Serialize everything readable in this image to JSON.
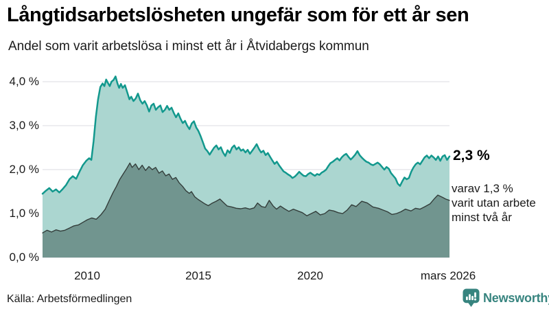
{
  "header": {
    "title": "Långtidsarbetslösheten ungefär som för ett år sen",
    "subtitle": "Andel som varit arbetslösa i minst ett år i Åtvidabergs kommun"
  },
  "annotations": {
    "end_value": "2,3 %",
    "secondary": [
      "varav 1,3 %",
      "varit utan arbete",
      "minst två år"
    ]
  },
  "footer": {
    "source": "Källa: Arbetsförmedlingen",
    "brand": "Newsworthy"
  },
  "colors": {
    "accent_line": "#12988d",
    "fill_light": "#abd6d0",
    "fill_dark": "#71958f",
    "line_dark": "#333d3a",
    "grid": "#e2e2e7",
    "text": "#1a1a1a",
    "brand": "#37847f"
  },
  "chart_data": {
    "type": "area",
    "title": "Långtidsarbetslösheten ungefär som för ett år sen",
    "subtitle": "Andel som varit arbetslösa i minst ett år i Åtvidabergs kommun",
    "source": "Arbetsförmedlingen",
    "grid": true,
    "x_range": [
      2008.0,
      2026.17
    ],
    "ylim": [
      0,
      4.3
    ],
    "x_ticks": [
      "2010",
      "2015",
      "2020",
      "mars 2026"
    ],
    "x_tick_years": [
      2010,
      2015,
      2020,
      2026.17
    ],
    "y_ticks": [
      "4,0 %",
      "3,0 %",
      "2,0 %",
      "1,0 %",
      "0,0 %"
    ],
    "y_tick_values": [
      4,
      3,
      2,
      1,
      0
    ],
    "unit": "%",
    "series": [
      {
        "name": "Arbetslösa minst ett år",
        "end_label": "2,3 %",
        "end_value": 2.3,
        "line_color": "#12988d",
        "fill_color": "#abd6d0",
        "line_width": 2.5,
        "points": [
          [
            2008.0,
            1.45
          ],
          [
            2008.15,
            1.52
          ],
          [
            2008.3,
            1.58
          ],
          [
            2008.45,
            1.5
          ],
          [
            2008.6,
            1.55
          ],
          [
            2008.75,
            1.48
          ],
          [
            2008.9,
            1.56
          ],
          [
            2009.05,
            1.65
          ],
          [
            2009.2,
            1.78
          ],
          [
            2009.35,
            1.85
          ],
          [
            2009.5,
            1.79
          ],
          [
            2009.65,
            1.95
          ],
          [
            2009.8,
            2.1
          ],
          [
            2009.95,
            2.2
          ],
          [
            2010.08,
            2.26
          ],
          [
            2010.18,
            2.22
          ],
          [
            2010.28,
            2.65
          ],
          [
            2010.38,
            3.2
          ],
          [
            2010.48,
            3.6
          ],
          [
            2010.58,
            3.88
          ],
          [
            2010.68,
            3.96
          ],
          [
            2010.76,
            3.9
          ],
          [
            2010.84,
            4.05
          ],
          [
            2010.92,
            3.97
          ],
          [
            2011.0,
            3.9
          ],
          [
            2011.08,
            4.0
          ],
          [
            2011.17,
            4.04
          ],
          [
            2011.26,
            4.12
          ],
          [
            2011.34,
            3.97
          ],
          [
            2011.42,
            3.86
          ],
          [
            2011.5,
            3.95
          ],
          [
            2011.58,
            3.86
          ],
          [
            2011.68,
            3.92
          ],
          [
            2011.78,
            3.76
          ],
          [
            2011.88,
            3.6
          ],
          [
            2011.96,
            3.66
          ],
          [
            2012.06,
            3.56
          ],
          [
            2012.16,
            3.62
          ],
          [
            2012.26,
            3.73
          ],
          [
            2012.36,
            3.58
          ],
          [
            2012.46,
            3.5
          ],
          [
            2012.56,
            3.56
          ],
          [
            2012.66,
            3.46
          ],
          [
            2012.76,
            3.32
          ],
          [
            2012.86,
            3.46
          ],
          [
            2012.96,
            3.5
          ],
          [
            2013.06,
            3.36
          ],
          [
            2013.16,
            3.42
          ],
          [
            2013.26,
            3.46
          ],
          [
            2013.36,
            3.31
          ],
          [
            2013.46,
            3.36
          ],
          [
            2013.56,
            3.45
          ],
          [
            2013.66,
            3.36
          ],
          [
            2013.76,
            3.41
          ],
          [
            2013.86,
            3.29
          ],
          [
            2013.96,
            3.19
          ],
          [
            2014.06,
            3.28
          ],
          [
            2014.16,
            3.16
          ],
          [
            2014.26,
            3.06
          ],
          [
            2014.36,
            3.11
          ],
          [
            2014.46,
            3.0
          ],
          [
            2014.56,
            2.92
          ],
          [
            2014.66,
            3.05
          ],
          [
            2014.76,
            3.1
          ],
          [
            2014.86,
            2.96
          ],
          [
            2014.96,
            2.88
          ],
          [
            2015.06,
            2.76
          ],
          [
            2015.16,
            2.62
          ],
          [
            2015.26,
            2.48
          ],
          [
            2015.36,
            2.42
          ],
          [
            2015.46,
            2.34
          ],
          [
            2015.56,
            2.42
          ],
          [
            2015.66,
            2.5
          ],
          [
            2015.76,
            2.55
          ],
          [
            2015.86,
            2.46
          ],
          [
            2015.96,
            2.51
          ],
          [
            2016.06,
            2.39
          ],
          [
            2016.16,
            2.31
          ],
          [
            2016.26,
            2.44
          ],
          [
            2016.36,
            2.38
          ],
          [
            2016.46,
            2.5
          ],
          [
            2016.56,
            2.55
          ],
          [
            2016.66,
            2.46
          ],
          [
            2016.76,
            2.51
          ],
          [
            2016.86,
            2.43
          ],
          [
            2016.96,
            2.46
          ],
          [
            2017.06,
            2.39
          ],
          [
            2017.16,
            2.45
          ],
          [
            2017.26,
            2.36
          ],
          [
            2017.36,
            2.43
          ],
          [
            2017.46,
            2.5
          ],
          [
            2017.56,
            2.58
          ],
          [
            2017.66,
            2.47
          ],
          [
            2017.76,
            2.39
          ],
          [
            2017.86,
            2.43
          ],
          [
            2017.96,
            2.33
          ],
          [
            2018.06,
            2.38
          ],
          [
            2018.16,
            2.29
          ],
          [
            2018.26,
            2.21
          ],
          [
            2018.36,
            2.13
          ],
          [
            2018.46,
            2.18
          ],
          [
            2018.56,
            2.1
          ],
          [
            2018.66,
            2.03
          ],
          [
            2018.76,
            1.96
          ],
          [
            2018.86,
            1.93
          ],
          [
            2018.96,
            1.89
          ],
          [
            2019.06,
            1.86
          ],
          [
            2019.16,
            1.81
          ],
          [
            2019.26,
            1.84
          ],
          [
            2019.36,
            1.89
          ],
          [
            2019.46,
            1.95
          ],
          [
            2019.56,
            1.9
          ],
          [
            2019.66,
            1.86
          ],
          [
            2019.76,
            1.85
          ],
          [
            2019.86,
            1.9
          ],
          [
            2019.96,
            1.93
          ],
          [
            2020.06,
            1.89
          ],
          [
            2020.16,
            1.86
          ],
          [
            2020.26,
            1.9
          ],
          [
            2020.36,
            1.88
          ],
          [
            2020.46,
            1.93
          ],
          [
            2020.56,
            1.96
          ],
          [
            2020.66,
            2.0
          ],
          [
            2020.76,
            2.08
          ],
          [
            2020.86,
            2.15
          ],
          [
            2020.96,
            2.18
          ],
          [
            2021.06,
            2.22
          ],
          [
            2021.16,
            2.26
          ],
          [
            2021.26,
            2.21
          ],
          [
            2021.36,
            2.28
          ],
          [
            2021.46,
            2.33
          ],
          [
            2021.56,
            2.36
          ],
          [
            2021.66,
            2.29
          ],
          [
            2021.76,
            2.23
          ],
          [
            2021.86,
            2.28
          ],
          [
            2021.96,
            2.34
          ],
          [
            2022.06,
            2.42
          ],
          [
            2022.16,
            2.33
          ],
          [
            2022.26,
            2.27
          ],
          [
            2022.36,
            2.22
          ],
          [
            2022.46,
            2.18
          ],
          [
            2022.56,
            2.16
          ],
          [
            2022.66,
            2.12
          ],
          [
            2022.76,
            2.1
          ],
          [
            2022.86,
            2.13
          ],
          [
            2022.96,
            2.16
          ],
          [
            2023.06,
            2.12
          ],
          [
            2023.16,
            2.06
          ],
          [
            2023.26,
            2.0
          ],
          [
            2023.36,
            2.06
          ],
          [
            2023.46,
            2.02
          ],
          [
            2023.56,
            1.92
          ],
          [
            2023.66,
            1.86
          ],
          [
            2023.76,
            1.8
          ],
          [
            2023.86,
            1.68
          ],
          [
            2023.96,
            1.63
          ],
          [
            2024.06,
            1.73
          ],
          [
            2024.16,
            1.82
          ],
          [
            2024.26,
            1.78
          ],
          [
            2024.36,
            1.81
          ],
          [
            2024.46,
            1.95
          ],
          [
            2024.56,
            2.05
          ],
          [
            2024.66,
            2.12
          ],
          [
            2024.76,
            2.16
          ],
          [
            2024.86,
            2.12
          ],
          [
            2024.96,
            2.2
          ],
          [
            2025.06,
            2.28
          ],
          [
            2025.16,
            2.32
          ],
          [
            2025.26,
            2.26
          ],
          [
            2025.36,
            2.32
          ],
          [
            2025.46,
            2.28
          ],
          [
            2025.56,
            2.22
          ],
          [
            2025.66,
            2.3
          ],
          [
            2025.76,
            2.2
          ],
          [
            2025.86,
            2.3
          ],
          [
            2025.96,
            2.33
          ],
          [
            2026.06,
            2.22
          ],
          [
            2026.17,
            2.3
          ]
        ]
      },
      {
        "name": "varav utan arbete minst två år",
        "end_value": 1.3,
        "line_color": "#333d3a",
        "fill_color": "#71958f",
        "line_width": 1.4,
        "points": [
          [
            2008.0,
            0.56
          ],
          [
            2008.2,
            0.62
          ],
          [
            2008.4,
            0.58
          ],
          [
            2008.6,
            0.63
          ],
          [
            2008.8,
            0.6
          ],
          [
            2009.0,
            0.62
          ],
          [
            2009.2,
            0.67
          ],
          [
            2009.4,
            0.72
          ],
          [
            2009.6,
            0.74
          ],
          [
            2009.8,
            0.8
          ],
          [
            2010.0,
            0.86
          ],
          [
            2010.2,
            0.9
          ],
          [
            2010.4,
            0.87
          ],
          [
            2010.6,
            0.97
          ],
          [
            2010.8,
            1.1
          ],
          [
            2011.0,
            1.32
          ],
          [
            2011.15,
            1.48
          ],
          [
            2011.3,
            1.62
          ],
          [
            2011.45,
            1.78
          ],
          [
            2011.6,
            1.9
          ],
          [
            2011.75,
            2.02
          ],
          [
            2011.9,
            2.15
          ],
          [
            2012.0,
            2.05
          ],
          [
            2012.15,
            2.13
          ],
          [
            2012.3,
            2.0
          ],
          [
            2012.45,
            2.1
          ],
          [
            2012.6,
            1.98
          ],
          [
            2012.75,
            2.07
          ],
          [
            2012.9,
            2.0
          ],
          [
            2013.05,
            2.05
          ],
          [
            2013.2,
            1.92
          ],
          [
            2013.35,
            1.97
          ],
          [
            2013.5,
            1.86
          ],
          [
            2013.65,
            1.9
          ],
          [
            2013.8,
            1.78
          ],
          [
            2013.95,
            1.82
          ],
          [
            2014.1,
            1.7
          ],
          [
            2014.25,
            1.62
          ],
          [
            2014.4,
            1.52
          ],
          [
            2014.55,
            1.46
          ],
          [
            2014.65,
            1.5
          ],
          [
            2014.8,
            1.38
          ],
          [
            2014.95,
            1.32
          ],
          [
            2015.1,
            1.27
          ],
          [
            2015.25,
            1.22
          ],
          [
            2015.4,
            1.18
          ],
          [
            2015.55,
            1.23
          ],
          [
            2015.75,
            1.28
          ],
          [
            2015.92,
            1.33
          ],
          [
            2016.1,
            1.24
          ],
          [
            2016.25,
            1.17
          ],
          [
            2016.45,
            1.15
          ],
          [
            2016.65,
            1.12
          ],
          [
            2016.85,
            1.11
          ],
          [
            2017.05,
            1.13
          ],
          [
            2017.25,
            1.1
          ],
          [
            2017.45,
            1.13
          ],
          [
            2017.6,
            1.24
          ],
          [
            2017.78,
            1.16
          ],
          [
            2017.95,
            1.14
          ],
          [
            2018.12,
            1.3
          ],
          [
            2018.3,
            1.17
          ],
          [
            2018.45,
            1.1
          ],
          [
            2018.62,
            1.17
          ],
          [
            2018.8,
            1.11
          ],
          [
            2019.0,
            1.05
          ],
          [
            2019.2,
            1.1
          ],
          [
            2019.4,
            1.06
          ],
          [
            2019.6,
            1.02
          ],
          [
            2019.8,
            0.95
          ],
          [
            2020.0,
            1.0
          ],
          [
            2020.2,
            1.05
          ],
          [
            2020.4,
            0.97
          ],
          [
            2020.6,
            1.0
          ],
          [
            2020.8,
            1.08
          ],
          [
            2021.0,
            1.06
          ],
          [
            2021.2,
            1.02
          ],
          [
            2021.4,
            1.0
          ],
          [
            2021.6,
            1.08
          ],
          [
            2021.8,
            1.2
          ],
          [
            2022.0,
            1.16
          ],
          [
            2022.25,
            1.28
          ],
          [
            2022.5,
            1.24
          ],
          [
            2022.75,
            1.15
          ],
          [
            2023.0,
            1.12
          ],
          [
            2023.2,
            1.08
          ],
          [
            2023.4,
            1.04
          ],
          [
            2023.6,
            0.98
          ],
          [
            2023.8,
            1.0
          ],
          [
            2024.0,
            1.04
          ],
          [
            2024.2,
            1.1
          ],
          [
            2024.45,
            1.06
          ],
          [
            2024.65,
            1.12
          ],
          [
            2024.85,
            1.1
          ],
          [
            2025.05,
            1.15
          ],
          [
            2025.3,
            1.22
          ],
          [
            2025.5,
            1.34
          ],
          [
            2025.65,
            1.42
          ],
          [
            2025.85,
            1.37
          ],
          [
            2026.0,
            1.33
          ],
          [
            2026.17,
            1.3
          ]
        ]
      }
    ]
  }
}
